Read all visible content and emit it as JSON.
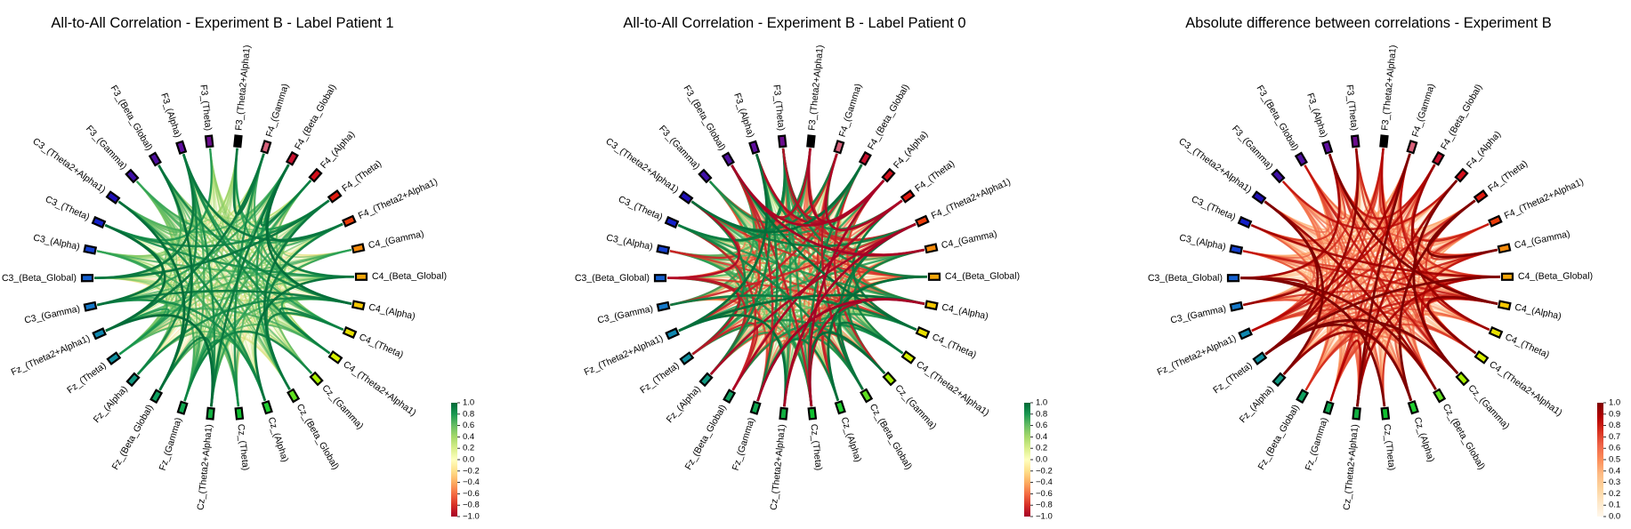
{
  "nodes": [
    "F3_(Theta2+Alpha1)",
    "F4_(Gamma)",
    "F4_(Beta_Global)",
    "F4_(Alpha)",
    "F4_(Theta)",
    "F4_(Theta2+Alpha1)",
    "C4_(Gamma)",
    "C4_(Beta_Global)",
    "C4_(Alpha)",
    "C4_(Theta)",
    "C4_(Theta2+Alpha1)",
    "Cz_(Gamma)",
    "Cz_(Beta_Global)",
    "Cz_(Alpha)",
    "Cz_(Theta)",
    "Cz_(Theta2+Alpha1)",
    "Fz_(Gamma)",
    "Fz_(Beta_Global)",
    "Fz_(Alpha)",
    "Fz_(Theta)",
    "Fz_(Theta2+Alpha1)",
    "C3_(Gamma)",
    "C3_(Beta_Global)",
    "C3_(Alpha)",
    "C3_(Theta)",
    "C3_(Theta2+Alpha1)",
    "F3_(Gamma)",
    "F3_(Beta_Global)",
    "F3_(Alpha)",
    "F3_(Theta)"
  ],
  "node_colors": [
    "#000000",
    "#d8607a",
    "#c8102e",
    "#d40f1c",
    "#e01a10",
    "#ea3c0a",
    "#f58a0a",
    "#f5a70a",
    "#f5c800",
    "#e8e000",
    "#d8f000",
    "#a8f000",
    "#60e020",
    "#20d030",
    "#10c030",
    "#10b040",
    "#10a850",
    "#10a060",
    "#109880",
    "#1090a0",
    "#1088b0",
    "#1478c8",
    "#1460d0",
    "#1440d0",
    "#1420c8",
    "#2010b8",
    "#4010a8",
    "#5010a0",
    "#600ea0",
    "#6a0c8c"
  ],
  "panels": [
    {
      "title": "All-to-All Correlation - Experiment B - Label Patient 1",
      "colormap": "RdYlGn",
      "colorbar_ticks": [
        "1.0",
        "0.8",
        "0.6",
        "0.4",
        "0.2",
        "0.0",
        "−0.2",
        "−0.4",
        "−0.6",
        "−0.8",
        "−1.0"
      ],
      "vmin": -1.0,
      "vmax": 1.0
    },
    {
      "title": "All-to-All Correlation - Experiment B - Label Patient 0",
      "colormap": "RdYlGn",
      "colorbar_ticks": [
        "1.0",
        "0.8",
        "0.6",
        "0.4",
        "0.2",
        "0.0",
        "−0.2",
        "−0.4",
        "−0.6",
        "−0.8",
        "−1.0"
      ],
      "vmin": -1.0,
      "vmax": 1.0
    },
    {
      "title": "Absolute difference between correlations - Experiment B",
      "colormap": "OrRd",
      "colorbar_ticks": [
        "1.0",
        "0.9",
        "0.8",
        "0.7",
        "0.6",
        "0.5",
        "0.4",
        "0.3",
        "0.2",
        "0.1",
        "0.0"
      ],
      "vmin": 0.0,
      "vmax": 1.0
    }
  ]
}
